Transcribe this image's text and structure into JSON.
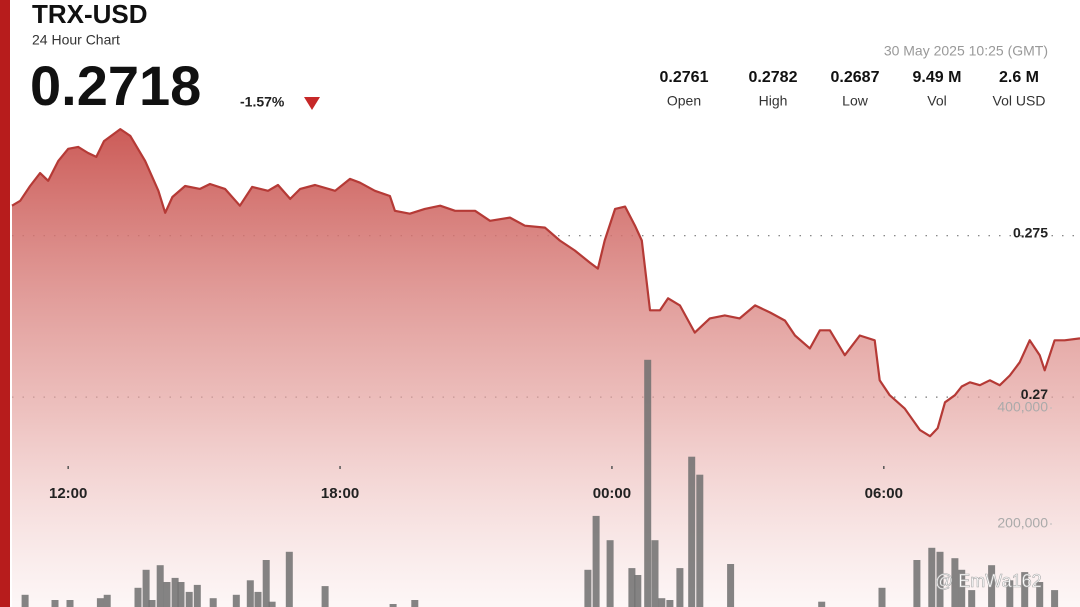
{
  "header": {
    "title": "TRX-USD",
    "subtitle": "24 Hour Chart",
    "price": "0.2718",
    "change": "-1.57%",
    "timestamp": "30 May 2025 10:25 (GMT)",
    "stats": [
      {
        "value": "0.2761",
        "label": "Open"
      },
      {
        "value": "0.2782",
        "label": "High"
      },
      {
        "value": "0.2687",
        "label": "Low"
      },
      {
        "value": "9.49 M",
        "label": "Vol"
      },
      {
        "value": "2.6 M",
        "label": "Vol USD"
      }
    ],
    "watermark": "@ EmWa162"
  },
  "chart_data": {
    "type": "area",
    "xlim": [
      10.76,
      34.33
    ],
    "xticks": [
      {
        "value": 12,
        "label": "12:00"
      },
      {
        "value": 18,
        "label": "18:00"
      },
      {
        "value": 24,
        "label": "00:00"
      },
      {
        "value": 30,
        "label": "06:00"
      }
    ],
    "ylim": [
      0.2635,
      0.2823
    ],
    "yticks": [
      0.27,
      0.275
    ],
    "grid": true,
    "y2lim": [
      56900,
      1103400
    ],
    "y2ticks": [
      {
        "value": 200000,
        "label": "200,000"
      },
      {
        "value": 400000,
        "label": "400,000"
      }
    ],
    "series": [
      {
        "name": "Price",
        "type": "area",
        "color": "#b53a36",
        "x": [
          10.76,
          10.94,
          11.16,
          11.38,
          11.56,
          11.78,
          12,
          12.22,
          12.44,
          12.62,
          12.79,
          13.15,
          13.37,
          13.7,
          13.99,
          14.14,
          14.3,
          14.58,
          14.91,
          15.13,
          15.46,
          15.79,
          16.06,
          16.41,
          16.63,
          16.9,
          17.12,
          17.45,
          17.89,
          18.22,
          18.44,
          18.77,
          19.1,
          19.21,
          19.54,
          19.87,
          20.21,
          20.54,
          20.98,
          21.31,
          21.75,
          22.08,
          22.52,
          22.85,
          23.18,
          23.51,
          23.69,
          23.84,
          24.07,
          24.29,
          24.51,
          24.66,
          24.84,
          25.06,
          25.24,
          25.5,
          25.83,
          26.16,
          26.49,
          26.82,
          27.16,
          27.49,
          27.82,
          28.04,
          28.37,
          28.59,
          28.81,
          29.14,
          29.47,
          29.8,
          29.91,
          30.13,
          30.46,
          30.8,
          31.02,
          31.19,
          31.35,
          31.57,
          31.72,
          31.9,
          32.12,
          32.34,
          32.56,
          32.78,
          33,
          33.22,
          33.44,
          33.55,
          33.77,
          33.99,
          34.33
        ],
        "values": [
          0.27593,
          0.27608,
          0.27654,
          0.27694,
          0.2767,
          0.27731,
          0.27769,
          0.27775,
          0.27756,
          0.27744,
          0.27793,
          0.2783,
          0.27809,
          0.27731,
          0.27639,
          0.27571,
          0.2762,
          0.27654,
          0.27645,
          0.2766,
          0.27645,
          0.27593,
          0.27651,
          0.27639,
          0.27657,
          0.27614,
          0.27645,
          0.27657,
          0.27639,
          0.27676,
          0.27664,
          0.27639,
          0.27623,
          0.27577,
          0.27568,
          0.27583,
          0.27593,
          0.27577,
          0.27577,
          0.27546,
          0.27556,
          0.27531,
          0.27525,
          0.27485,
          0.27454,
          0.27417,
          0.27398,
          0.27485,
          0.27583,
          0.2759,
          0.27531,
          0.27485,
          0.27269,
          0.27269,
          0.27306,
          0.27284,
          0.272,
          0.27244,
          0.27253,
          0.27244,
          0.27284,
          0.27262,
          0.27237,
          0.27191,
          0.27151,
          0.27207,
          0.27207,
          0.2713,
          0.27191,
          0.27176,
          0.27052,
          0.27006,
          0.26965,
          0.26898,
          0.26879,
          0.26904,
          0.26984,
          0.27006,
          0.27033,
          0.27046,
          0.27037,
          0.27052,
          0.27037,
          0.27067,
          0.27108,
          0.27176,
          0.2713,
          0.27083,
          0.27176,
          0.27176,
          0.27182
        ]
      },
      {
        "name": "Volume",
        "type": "bar",
        "axis": "y2",
        "color": "#6e6e6e",
        "x": [
          11.05,
          11.71,
          12.04,
          12.71,
          12.86,
          13.54,
          13.72,
          13.85,
          14.03,
          14.18,
          14.36,
          14.49,
          14.67,
          14.85,
          15.2,
          15.71,
          16.02,
          16.19,
          16.37,
          16.5,
          16.88,
          17.67,
          19.17,
          19.65,
          23.47,
          23.65,
          23.96,
          24.44,
          24.57,
          24.79,
          24.95,
          25.1,
          25.28,
          25.5,
          25.76,
          25.94,
          26.62,
          28.63,
          29.96,
          30.73,
          31.06,
          31.24,
          31.57,
          31.72,
          31.94,
          32.38,
          32.78,
          33.11,
          33.44,
          33.77
        ],
        "values": [
          78000,
          69000,
          69000,
          72000,
          78000,
          90000,
          121000,
          69000,
          129000,
          100000,
          107000,
          100000,
          83000,
          95000,
          72000,
          78000,
          103000,
          83000,
          138000,
          66000,
          152000,
          93000,
          62000,
          69000,
          121000,
          214000,
          172000,
          124000,
          112000,
          483000,
          172000,
          72000,
          69000,
          124000,
          316000,
          285000,
          131000,
          66000,
          90000,
          138000,
          159000,
          152000,
          141000,
          121000,
          86000,
          129000,
          103000,
          117000,
          100000,
          86000
        ]
      }
    ]
  }
}
